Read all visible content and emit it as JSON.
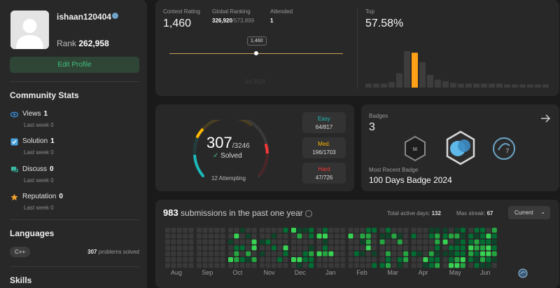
{
  "profile": {
    "username": "ishaan120404",
    "rank_label": "Rank",
    "rank_value": "262,958",
    "edit_label": "Edit Profile"
  },
  "community": {
    "title": "Community Stats",
    "items": [
      {
        "label": "Views",
        "value": "1",
        "sub": "Last week 0",
        "icon": "eye-icon",
        "color": "#3b8ed8"
      },
      {
        "label": "Solution",
        "value": "1",
        "sub": "Last week 0",
        "icon": "check-square-icon",
        "color": "#4aa3df"
      },
      {
        "label": "Discuss",
        "value": "0",
        "sub": "Last week 0",
        "icon": "discuss-icon",
        "color": "#3ab7a0"
      },
      {
        "label": "Reputation",
        "value": "0",
        "sub": "Last week 0",
        "icon": "star-icon",
        "color": "#f0a030"
      }
    ]
  },
  "languages": {
    "title": "Languages",
    "tag": "C++",
    "count": "307",
    "count_suffix": " problems solved"
  },
  "skills": {
    "title": "Skills"
  },
  "contest": {
    "rating_label": "Contest Rating",
    "rating": "1,460",
    "global_label": "Global Ranking",
    "global_rank": "326,920",
    "global_total": "/573,899",
    "attended_label": "Attended",
    "attended": "1",
    "tooltip": "1,460",
    "date_label": "Jul 2024",
    "top_label": "Top",
    "top_value": "57.58%",
    "histogram": [
      5,
      5,
      5,
      7,
      18,
      46,
      44,
      32,
      16,
      10,
      8,
      6,
      5,
      5,
      5,
      5,
      5,
      5,
      4,
      4,
      4,
      4,
      4,
      4
    ],
    "highlight_index": 6
  },
  "solved": {
    "count": "307",
    "total": "/3246",
    "solved_label": "Solved",
    "attempting": "12 Attempting",
    "easy_label": "Easy",
    "easy_value": "64/817",
    "medium_label": "Med.",
    "medium_value": "196/1703",
    "hard_label": "Hard",
    "hard_value": "47/726",
    "colors": {
      "easy": "#1cbaba",
      "medium": "#ffb800",
      "hard": "#f63737"
    }
  },
  "badges": {
    "label": "Badges",
    "count": "3",
    "recent_label": "Most Recent Badge",
    "recent_name": "100 Days Badge 2024",
    "icons": [
      "50-days-badge-icon",
      "100-days-badge-icon",
      "july-badge-icon"
    ]
  },
  "heatmap": {
    "count": "983",
    "title_text": " submissions in the past one year",
    "active_label": "Total active days:",
    "active_value": "132",
    "streak_label": "Max streak:",
    "streak_value": "67",
    "dropdown": "Current",
    "months": [
      "Aug",
      "Sep",
      "Oct",
      "Nov",
      "Dec",
      "Jan",
      "Feb",
      "Mar",
      "Apr",
      "May",
      "Jun"
    ]
  }
}
